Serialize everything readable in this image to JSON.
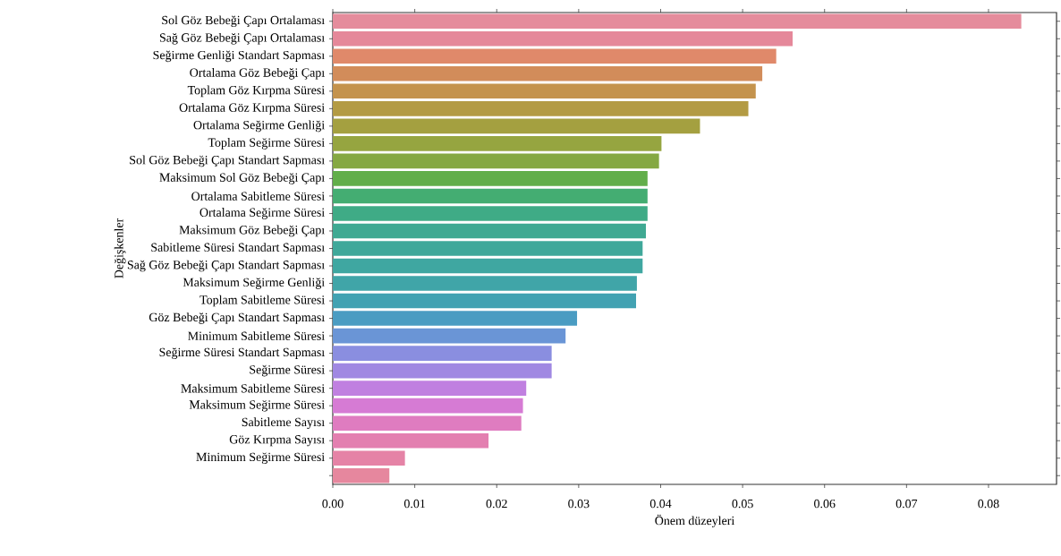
{
  "chart_data": {
    "type": "bar",
    "orientation": "horizontal",
    "xlabel": "Önem düzeyleri",
    "ylabel": "Değişkenler",
    "categories": [
      "Sol Göz Bebeği Çapı Ortalaması",
      "Sağ Göz Bebeği Çapı Ortalaması",
      "Seğirme Genliği Standart Sapması",
      "Ortalama Göz Bebeği Çapı",
      "Toplam Göz Kırpma Süresi",
      "Ortalama Göz Kırpma Süresi",
      "Ortalama Seğirme Genliği",
      "Toplam Seğirme Süresi",
      "Sol Göz Bebeği Çapı Standart Sapması",
      "Maksimum Sol Göz Bebeği Çapı",
      "Ortalama Sabitleme Süresi",
      "Ortalama Seğirme Süresi",
      "Maksimum Göz Bebeği Çapı",
      "Sabitleme Süresi Standart Sapması",
      "Sağ Göz Bebeği Çapı Standart Sapması",
      "Maksimum Seğirme Genliği",
      "Toplam Sabitleme Süresi",
      "Göz Bebeği Çapı Standart Sapması",
      "Minimum Sabitleme Süresi",
      "Seğirme Süresi Standart Sapması",
      "Seğirme Süresi",
      "Maksimum Sabitleme Süresi",
      "Maksimum Seğirme Süresi",
      "Sabitleme Sayısı",
      "Göz Kırpma Sayısı",
      "Minimum Seğirme Süresi",
      null
    ],
    "values": [
      0.084,
      0.0561,
      0.0541,
      0.0524,
      0.0516,
      0.0507,
      0.0448,
      0.0401,
      0.0398,
      0.0384,
      0.0384,
      0.0384,
      0.0382,
      0.0378,
      0.0378,
      0.0371,
      0.037,
      0.0298,
      0.0284,
      0.0267,
      0.0267,
      0.0236,
      0.0232,
      0.023,
      0.019,
      0.0088,
      0.0069
    ],
    "colors": [
      "#e58c9c",
      "#e5889a",
      "#e0896a",
      "#d28c5a",
      "#c4934d",
      "#b39b44",
      "#a4a040",
      "#96a540",
      "#85a842",
      "#62ae4a",
      "#44ad72",
      "#3fab86",
      "#3fa992",
      "#3fa89a",
      "#3fa7a1",
      "#40a5a8",
      "#42a2b2",
      "#4a9cc2",
      "#6a95d6",
      "#8a8ee0",
      "#a088e2",
      "#c080e0",
      "#d67bd4",
      "#df7cc0",
      "#e37fb0",
      "#e583a6",
      "#e6879e"
    ],
    "xlim": [
      0,
      0.0883
    ],
    "xticks": [
      {
        "value": 0,
        "label": "0.00"
      },
      {
        "value": 0.01,
        "label": "0.01"
      },
      {
        "value": 0.02,
        "label": "0.02"
      },
      {
        "value": 0.03,
        "label": "0.03"
      },
      {
        "value": 0.04,
        "label": "0.04"
      },
      {
        "value": 0.05,
        "label": "0.05"
      },
      {
        "value": 0.06,
        "label": "0.06"
      },
      {
        "value": 0.07,
        "label": "0.07"
      },
      {
        "value": 0.08,
        "label": "0.08"
      }
    ]
  }
}
